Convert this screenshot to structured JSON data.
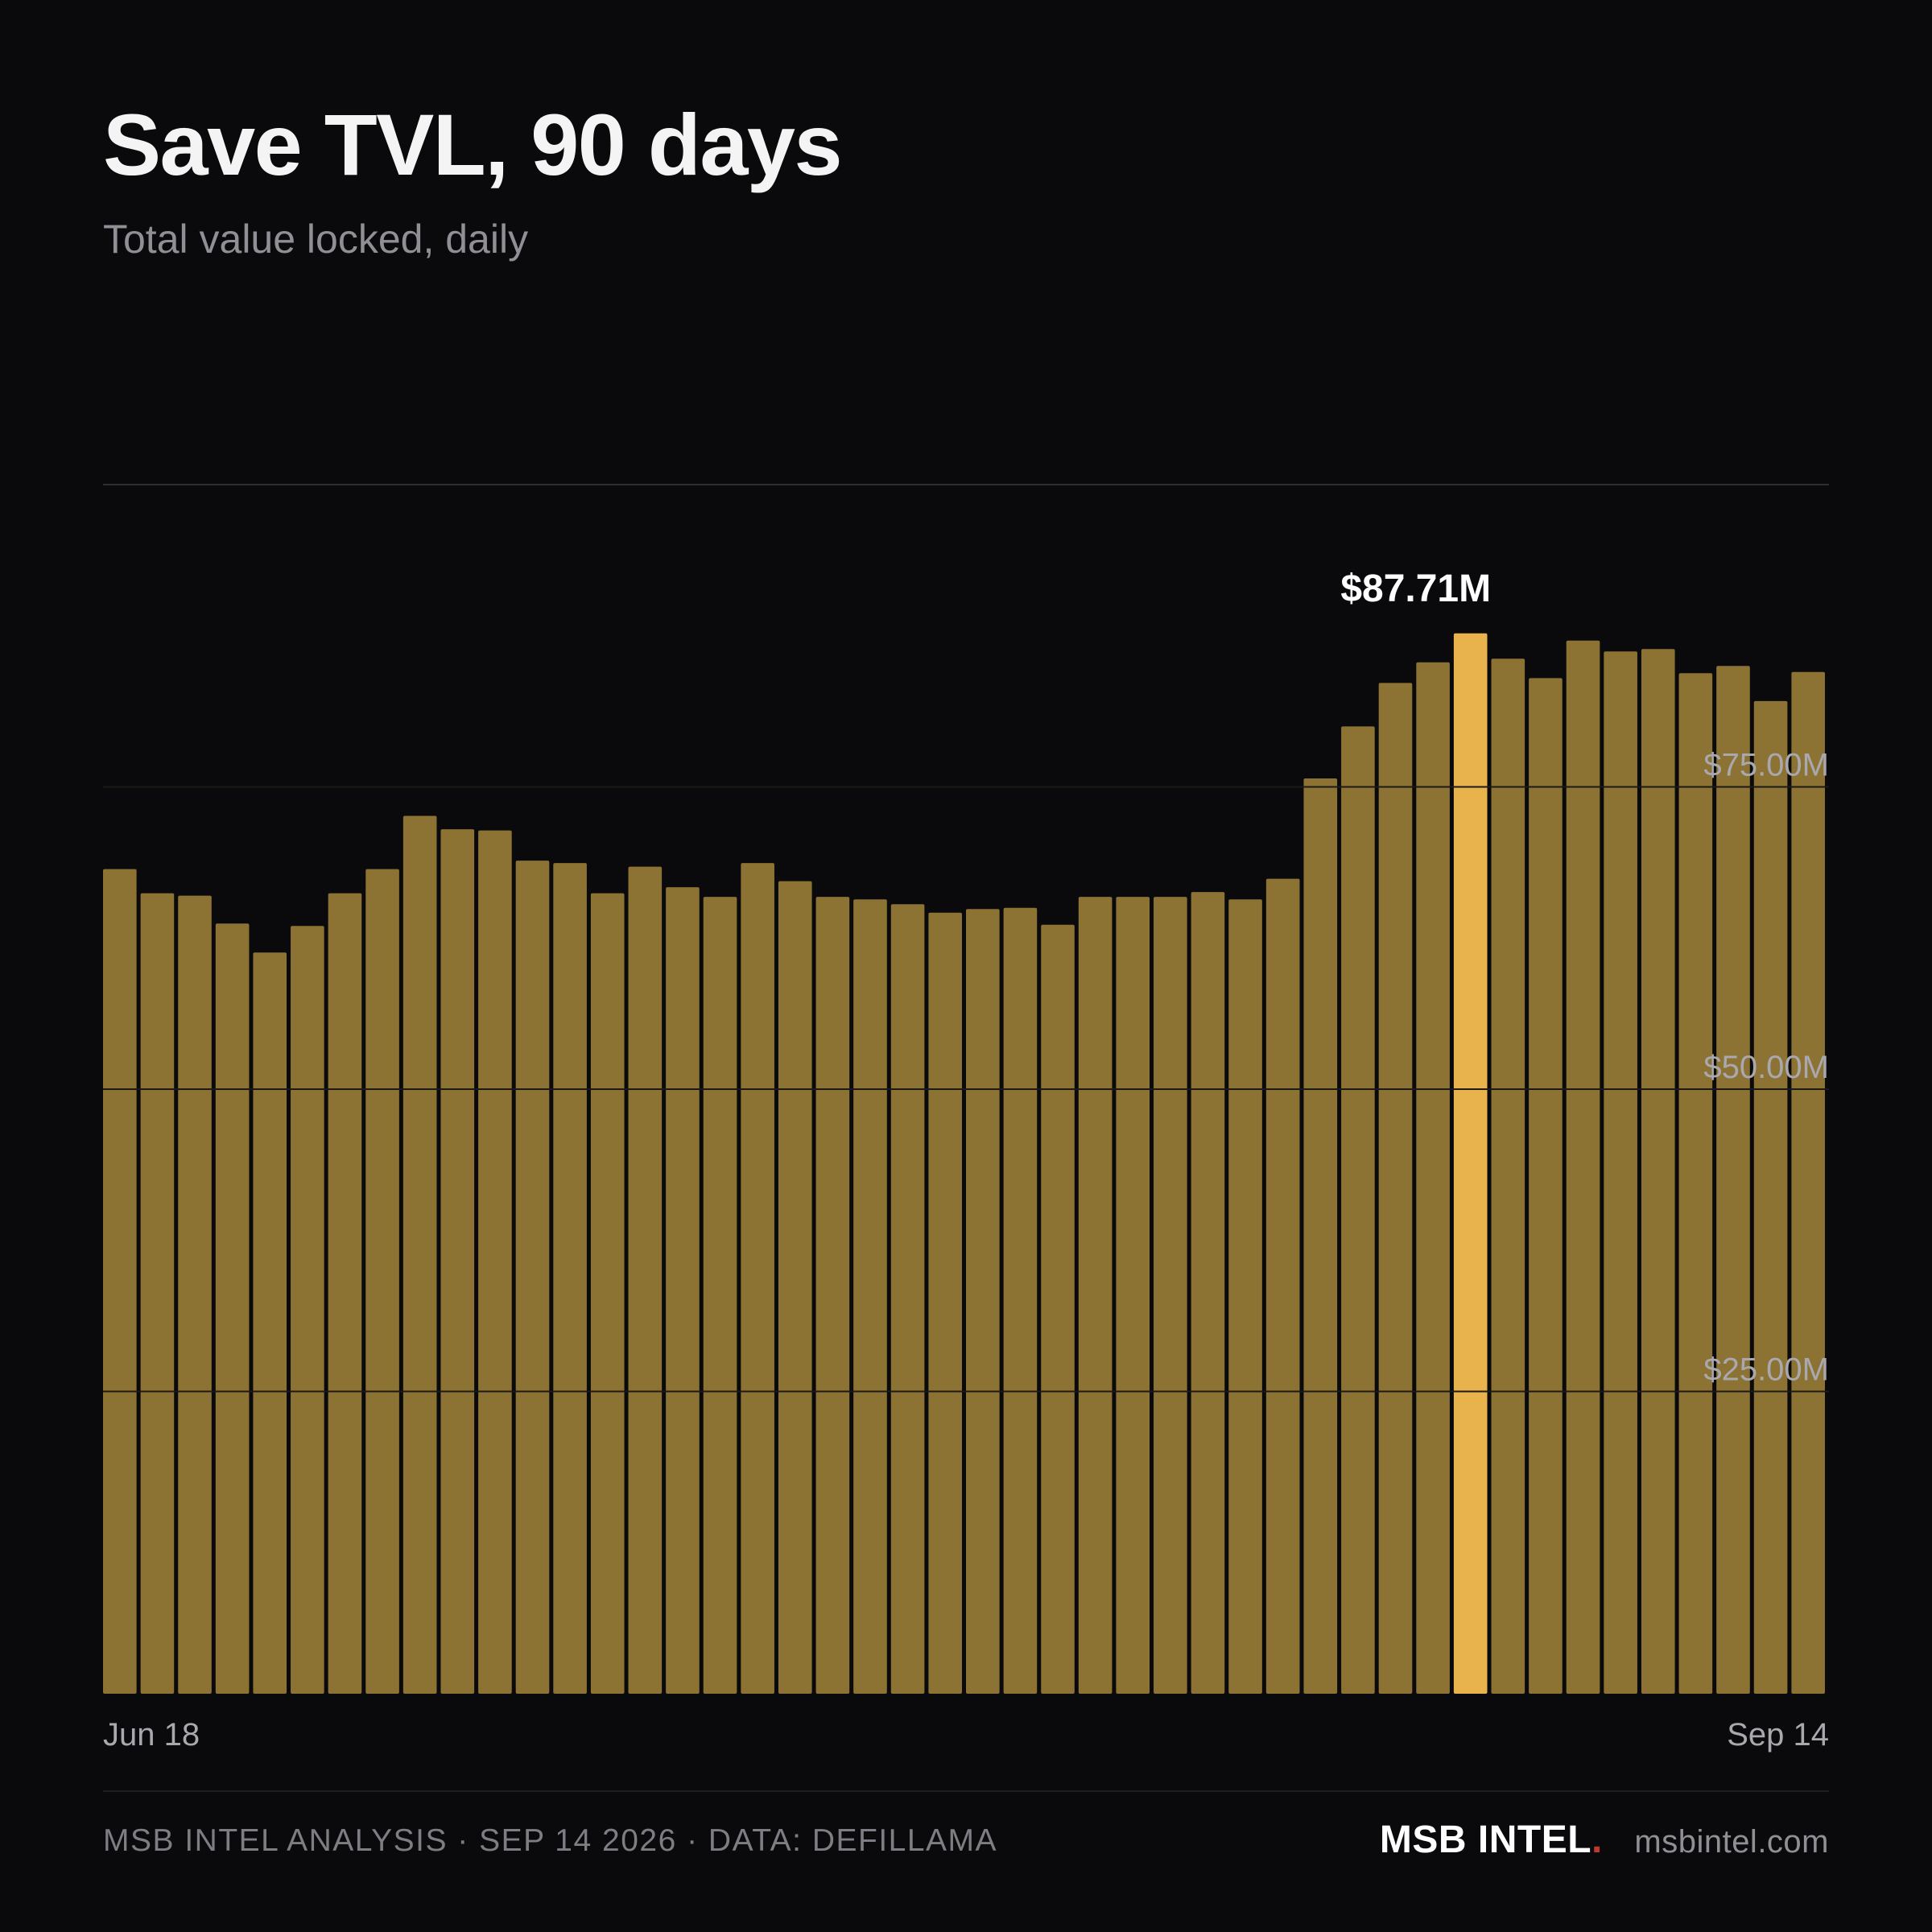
{
  "header": {
    "title": "Save TVL, 90 days",
    "subtitle": "Total value locked, daily"
  },
  "footer": {
    "source": "MSB INTEL ANALYSIS · SEP 14 2026 · DATA: DEFILLAMA",
    "brand": "MSB INTEL",
    "brand_dot": ".",
    "url": "msbintel.com"
  },
  "colors": {
    "background": "#0a0a0c",
    "bar": "#8c7334",
    "bar_highlight": "#e8b24c",
    "gridline": "#2e2e33",
    "tick_label": "#a8a8ae",
    "brand_dot": "#c0392b"
  },
  "chart_data": {
    "type": "bar",
    "title": "Save TVL, 90 days",
    "subtitle": "Total value locked, daily",
    "xlabel": "",
    "ylabel": "",
    "ylim": [
      0,
      100
    ],
    "y_unit": "USD millions",
    "y_ticks": [
      {
        "value": 25,
        "label": "$25.00M"
      },
      {
        "value": 50,
        "label": "$50.00M"
      },
      {
        "value": 75,
        "label": "$75.00M"
      }
    ],
    "x_tick_labels": {
      "first": "Jun 18",
      "last": "Sep 14"
    },
    "grid": true,
    "highlight_index": 36,
    "highlight_label": "$87.71M",
    "values": [
      68.2,
      66.2,
      66.0,
      63.7,
      61.3,
      63.5,
      66.2,
      68.2,
      72.6,
      71.5,
      71.4,
      68.9,
      68.7,
      66.2,
      68.4,
      66.7,
      65.9,
      68.7,
      67.2,
      65.9,
      65.7,
      65.3,
      64.6,
      64.9,
      65.0,
      63.6,
      65.9,
      65.9,
      65.9,
      66.3,
      65.7,
      67.4,
      75.7,
      80.0,
      83.6,
      85.3,
      87.7,
      85.6,
      84.0,
      87.1,
      86.2,
      86.4,
      84.4,
      85.0,
      82.1,
      84.5
    ]
  }
}
